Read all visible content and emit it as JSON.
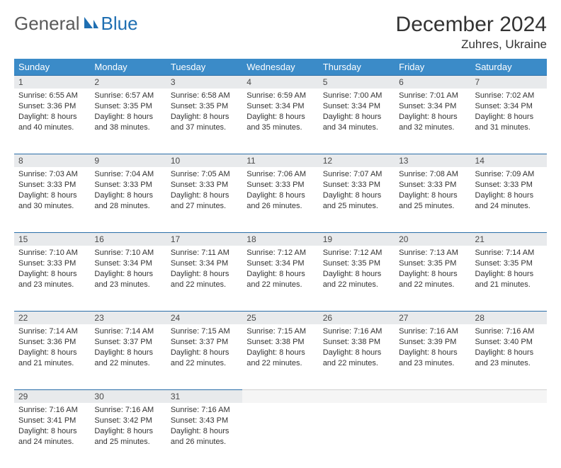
{
  "brand": {
    "part1": "General",
    "part2": "Blue"
  },
  "title": "December 2024",
  "location": "Zuhres, Ukraine",
  "colors": {
    "header_bg": "#3b8bc8",
    "header_text": "#ffffff",
    "daynum_bg": "#e8eaec",
    "rule": "#2a6ea8",
    "body_text": "#333333",
    "logo_gray": "#5a5a5a",
    "logo_blue": "#1f6fb2"
  },
  "weekdays": [
    "Sunday",
    "Monday",
    "Tuesday",
    "Wednesday",
    "Thursday",
    "Friday",
    "Saturday"
  ],
  "weeks": [
    [
      {
        "n": "1",
        "sr": "Sunrise: 6:55 AM",
        "ss": "Sunset: 3:36 PM",
        "dl": "Daylight: 8 hours and 40 minutes."
      },
      {
        "n": "2",
        "sr": "Sunrise: 6:57 AM",
        "ss": "Sunset: 3:35 PM",
        "dl": "Daylight: 8 hours and 38 minutes."
      },
      {
        "n": "3",
        "sr": "Sunrise: 6:58 AM",
        "ss": "Sunset: 3:35 PM",
        "dl": "Daylight: 8 hours and 37 minutes."
      },
      {
        "n": "4",
        "sr": "Sunrise: 6:59 AM",
        "ss": "Sunset: 3:34 PM",
        "dl": "Daylight: 8 hours and 35 minutes."
      },
      {
        "n": "5",
        "sr": "Sunrise: 7:00 AM",
        "ss": "Sunset: 3:34 PM",
        "dl": "Daylight: 8 hours and 34 minutes."
      },
      {
        "n": "6",
        "sr": "Sunrise: 7:01 AM",
        "ss": "Sunset: 3:34 PM",
        "dl": "Daylight: 8 hours and 32 minutes."
      },
      {
        "n": "7",
        "sr": "Sunrise: 7:02 AM",
        "ss": "Sunset: 3:34 PM",
        "dl": "Daylight: 8 hours and 31 minutes."
      }
    ],
    [
      {
        "n": "8",
        "sr": "Sunrise: 7:03 AM",
        "ss": "Sunset: 3:33 PM",
        "dl": "Daylight: 8 hours and 30 minutes."
      },
      {
        "n": "9",
        "sr": "Sunrise: 7:04 AM",
        "ss": "Sunset: 3:33 PM",
        "dl": "Daylight: 8 hours and 28 minutes."
      },
      {
        "n": "10",
        "sr": "Sunrise: 7:05 AM",
        "ss": "Sunset: 3:33 PM",
        "dl": "Daylight: 8 hours and 27 minutes."
      },
      {
        "n": "11",
        "sr": "Sunrise: 7:06 AM",
        "ss": "Sunset: 3:33 PM",
        "dl": "Daylight: 8 hours and 26 minutes."
      },
      {
        "n": "12",
        "sr": "Sunrise: 7:07 AM",
        "ss": "Sunset: 3:33 PM",
        "dl": "Daylight: 8 hours and 25 minutes."
      },
      {
        "n": "13",
        "sr": "Sunrise: 7:08 AM",
        "ss": "Sunset: 3:33 PM",
        "dl": "Daylight: 8 hours and 25 minutes."
      },
      {
        "n": "14",
        "sr": "Sunrise: 7:09 AM",
        "ss": "Sunset: 3:33 PM",
        "dl": "Daylight: 8 hours and 24 minutes."
      }
    ],
    [
      {
        "n": "15",
        "sr": "Sunrise: 7:10 AM",
        "ss": "Sunset: 3:33 PM",
        "dl": "Daylight: 8 hours and 23 minutes."
      },
      {
        "n": "16",
        "sr": "Sunrise: 7:10 AM",
        "ss": "Sunset: 3:34 PM",
        "dl": "Daylight: 8 hours and 23 minutes."
      },
      {
        "n": "17",
        "sr": "Sunrise: 7:11 AM",
        "ss": "Sunset: 3:34 PM",
        "dl": "Daylight: 8 hours and 22 minutes."
      },
      {
        "n": "18",
        "sr": "Sunrise: 7:12 AM",
        "ss": "Sunset: 3:34 PM",
        "dl": "Daylight: 8 hours and 22 minutes."
      },
      {
        "n": "19",
        "sr": "Sunrise: 7:12 AM",
        "ss": "Sunset: 3:35 PM",
        "dl": "Daylight: 8 hours and 22 minutes."
      },
      {
        "n": "20",
        "sr": "Sunrise: 7:13 AM",
        "ss": "Sunset: 3:35 PM",
        "dl": "Daylight: 8 hours and 22 minutes."
      },
      {
        "n": "21",
        "sr": "Sunrise: 7:14 AM",
        "ss": "Sunset: 3:35 PM",
        "dl": "Daylight: 8 hours and 21 minutes."
      }
    ],
    [
      {
        "n": "22",
        "sr": "Sunrise: 7:14 AM",
        "ss": "Sunset: 3:36 PM",
        "dl": "Daylight: 8 hours and 21 minutes."
      },
      {
        "n": "23",
        "sr": "Sunrise: 7:14 AM",
        "ss": "Sunset: 3:37 PM",
        "dl": "Daylight: 8 hours and 22 minutes."
      },
      {
        "n": "24",
        "sr": "Sunrise: 7:15 AM",
        "ss": "Sunset: 3:37 PM",
        "dl": "Daylight: 8 hours and 22 minutes."
      },
      {
        "n": "25",
        "sr": "Sunrise: 7:15 AM",
        "ss": "Sunset: 3:38 PM",
        "dl": "Daylight: 8 hours and 22 minutes."
      },
      {
        "n": "26",
        "sr": "Sunrise: 7:16 AM",
        "ss": "Sunset: 3:38 PM",
        "dl": "Daylight: 8 hours and 22 minutes."
      },
      {
        "n": "27",
        "sr": "Sunrise: 7:16 AM",
        "ss": "Sunset: 3:39 PM",
        "dl": "Daylight: 8 hours and 23 minutes."
      },
      {
        "n": "28",
        "sr": "Sunrise: 7:16 AM",
        "ss": "Sunset: 3:40 PM",
        "dl": "Daylight: 8 hours and 23 minutes."
      }
    ],
    [
      {
        "n": "29",
        "sr": "Sunrise: 7:16 AM",
        "ss": "Sunset: 3:41 PM",
        "dl": "Daylight: 8 hours and 24 minutes."
      },
      {
        "n": "30",
        "sr": "Sunrise: 7:16 AM",
        "ss": "Sunset: 3:42 PM",
        "dl": "Daylight: 8 hours and 25 minutes."
      },
      {
        "n": "31",
        "sr": "Sunrise: 7:16 AM",
        "ss": "Sunset: 3:43 PM",
        "dl": "Daylight: 8 hours and 26 minutes."
      },
      {
        "empty": true
      },
      {
        "empty": true
      },
      {
        "empty": true
      },
      {
        "empty": true
      }
    ]
  ]
}
